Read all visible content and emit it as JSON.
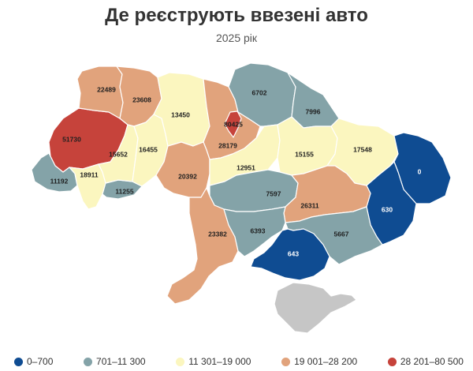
{
  "title": "Де реєструють ввезені авто",
  "subtitle": "2025 рік",
  "colors": {
    "0": "#0f4c92",
    "1": "#84a3a8",
    "2": "#fbf6bf",
    "3": "#e1a37c",
    "4": "#c6433b",
    "crimea": "#c6c6c6"
  },
  "legend": [
    {
      "label": "0–700",
      "bin": 0
    },
    {
      "label": "701–11 300",
      "bin": 1
    },
    {
      "label": "11 301–19 000",
      "bin": 2
    },
    {
      "label": "19 001–28 200",
      "bin": 3
    },
    {
      "label": "28 201–80 500",
      "bin": 4
    }
  ],
  "regions": [
    {
      "id": "volyn",
      "value": "22489",
      "bin": 3
    },
    {
      "id": "rivne",
      "value": "23608",
      "bin": 3
    },
    {
      "id": "lviv",
      "value": "51730",
      "bin": 4
    },
    {
      "id": "zakarpattia",
      "value": "11192",
      "bin": 1
    },
    {
      "id": "ivano-frankivsk",
      "value": "18911",
      "bin": 2
    },
    {
      "id": "chernivtsi",
      "value": "11255",
      "bin": 1
    },
    {
      "id": "ternopil",
      "value": "15652",
      "bin": 2
    },
    {
      "id": "khmelnytskyi",
      "value": "16455",
      "bin": 2
    },
    {
      "id": "zhytomyr",
      "value": "13450",
      "bin": 2
    },
    {
      "id": "kyiv-oblast",
      "value": "28179",
      "bin": 3
    },
    {
      "id": "kyiv-city",
      "value": "80425",
      "bin": 4
    },
    {
      "id": "chernihiv",
      "value": "6702",
      "bin": 1
    },
    {
      "id": "sumy",
      "value": "7996",
      "bin": 1
    },
    {
      "id": "vinnytsia",
      "value": "20392",
      "bin": 3
    },
    {
      "id": "cherkasy",
      "value": "12951",
      "bin": 2
    },
    {
      "id": "poltava",
      "value": "15155",
      "bin": 2
    },
    {
      "id": "kharkiv",
      "value": "17548",
      "bin": 2
    },
    {
      "id": "luhansk",
      "value": "0",
      "bin": 0
    },
    {
      "id": "donetsk",
      "value": "630",
      "bin": 0
    },
    {
      "id": "kirovohrad",
      "value": "7597",
      "bin": 1
    },
    {
      "id": "dnipropetrovsk",
      "value": "26311",
      "bin": 3
    },
    {
      "id": "odesa",
      "value": "23382",
      "bin": 3
    },
    {
      "id": "mykolaiv",
      "value": "6393",
      "bin": 1
    },
    {
      "id": "zaporizhzhia",
      "value": "5667",
      "bin": 1
    },
    {
      "id": "kherson",
      "value": "643",
      "bin": 0
    },
    {
      "id": "crimea",
      "value": "",
      "bin": null
    }
  ]
}
